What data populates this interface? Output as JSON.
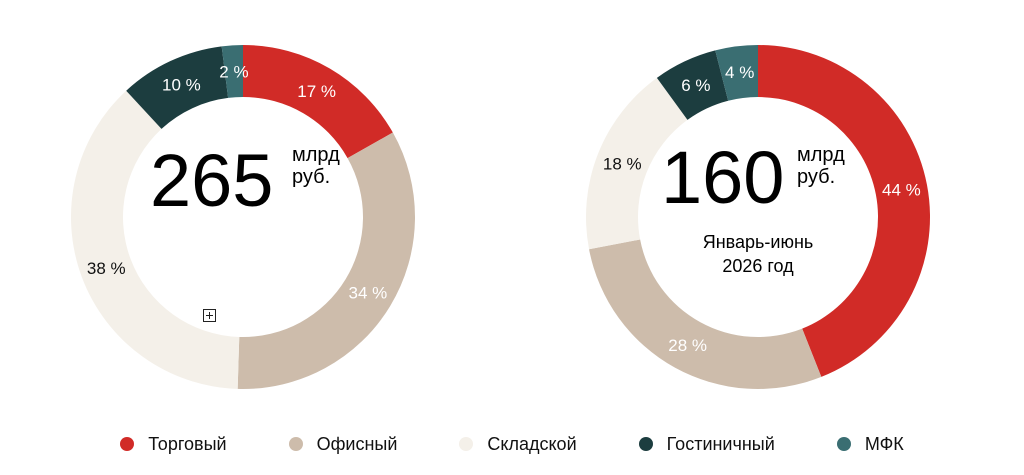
{
  "chart_data": [
    {
      "type": "pie",
      "center_value": "265",
      "center_unit_line1": "млрд",
      "center_unit_line2": "руб.",
      "subtitle_line1": "",
      "subtitle_line2": "",
      "slices": [
        {
          "label": "Торговый",
          "value": 17,
          "text": "17 %"
        },
        {
          "label": "Офисный",
          "value": 34,
          "text": "34 %"
        },
        {
          "label": "Складской",
          "value": 38,
          "text": "38 %"
        },
        {
          "label": "Гостиничный",
          "value": 10,
          "text": "10 %"
        },
        {
          "label": "МФК",
          "value": 2,
          "text": "2 %"
        }
      ]
    },
    {
      "type": "pie",
      "center_value": "160",
      "center_unit_line1": "млрд",
      "center_unit_line2": "руб.",
      "subtitle_line1": "Январь-июнь",
      "subtitle_line2": "2026 год",
      "slices": [
        {
          "label": "Торговый",
          "value": 44,
          "text": "44 %"
        },
        {
          "label": "Офисный",
          "value": 28,
          "text": "28 %"
        },
        {
          "label": "Складской",
          "value": 18,
          "text": "18 %"
        },
        {
          "label": "Гостиничный",
          "value": 6,
          "text": "6 %"
        },
        {
          "label": "МФК",
          "value": 4,
          "text": "4 %"
        }
      ]
    }
  ],
  "legend": [
    {
      "label": "Торговый",
      "color": "#d12b27"
    },
    {
      "label": "Офисный",
      "color": "#cdbcab"
    },
    {
      "label": "Складской",
      "color": "#f4f0e9"
    },
    {
      "label": "Гостиничный",
      "color": "#1c3d3f"
    },
    {
      "label": "МФК",
      "color": "#3a6e72"
    }
  ],
  "label_colors": {
    "Торговый": "#ffffff",
    "Офисный": "#ffffff",
    "Складской": "#111111",
    "Гостиничный": "#ffffff",
    "МФК": "#ffffff"
  },
  "icons": {
    "expand": "expand-icon"
  }
}
